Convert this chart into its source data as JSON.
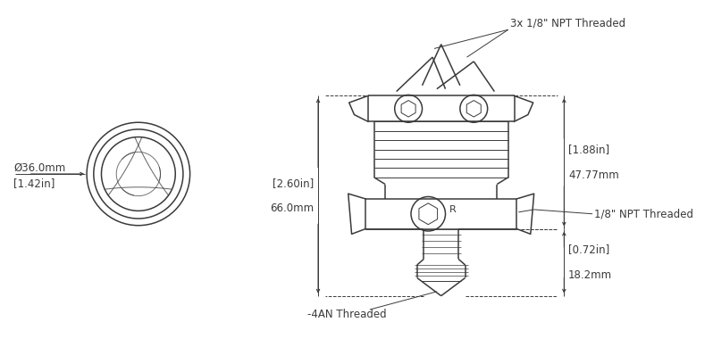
{
  "bg_color": "#ffffff",
  "line_color": "#3a3a3a",
  "dim_color": "#3a3a3a",
  "text_color": "#3a3a3a",
  "figsize": [
    7.98,
    3.89
  ],
  "dpi": 100,
  "labels": {
    "top_label": "3x 1/8\" NPT Threaded",
    "right_top_label_line1": "[1.88in]",
    "right_top_label_line2": "47.77mm",
    "right_mid_label": "1/8\" NPT Threaded",
    "left_label_line1": "[2.60in]",
    "left_label_line2": "66.0mm",
    "bottom_label_line1": "[0.72in]",
    "bottom_label_line2": "18.2mm",
    "bottom_left_label": "-4AN Threaded",
    "circle_label_line1": "[1.42in]",
    "circle_label_line2": "Ø36.0mm"
  }
}
